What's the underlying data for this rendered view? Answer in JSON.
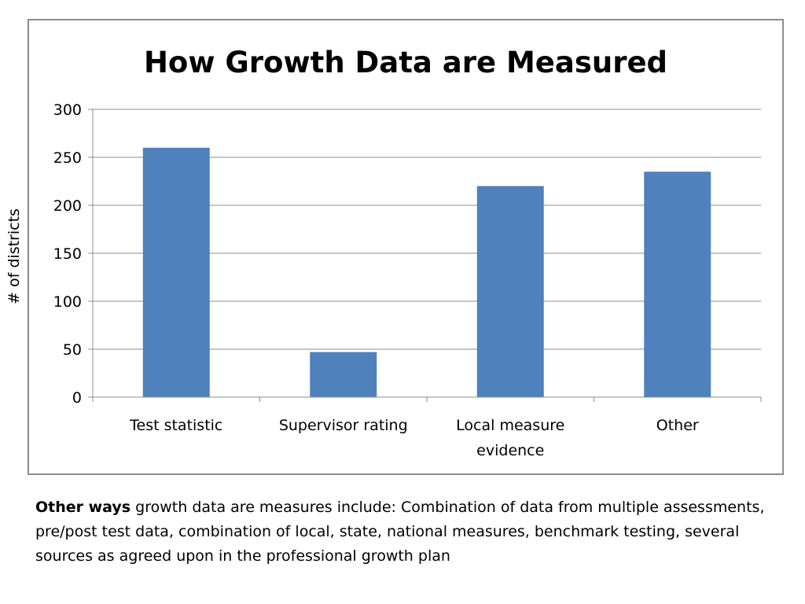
{
  "chart_data": {
    "type": "bar",
    "title": "How Growth Data are Measured",
    "xlabel": "",
    "ylabel": "# of districts",
    "categories": [
      "Test statistic",
      "Supervisor rating",
      "Local measure evidence",
      "Other"
    ],
    "category_lines": [
      [
        "Test statistic"
      ],
      [
        "Supervisor rating"
      ],
      [
        "Local measure",
        "evidence"
      ],
      [
        "Other"
      ]
    ],
    "values": [
      260,
      47,
      220,
      235
    ],
    "ylim": [
      0,
      300
    ],
    "yticks": [
      0,
      50,
      100,
      150,
      200,
      250,
      300
    ],
    "grid": true,
    "legend": "none",
    "bar_color": "#4f81bd",
    "grid_color": "#8c8c8c"
  },
  "note": {
    "lead": "Other ways",
    "text": " growth data are measures include: Combination of data from multiple assessments, pre/post test data, combination of local, state, national measures, benchmark testing, several sources as agreed upon in the professional growth plan"
  }
}
